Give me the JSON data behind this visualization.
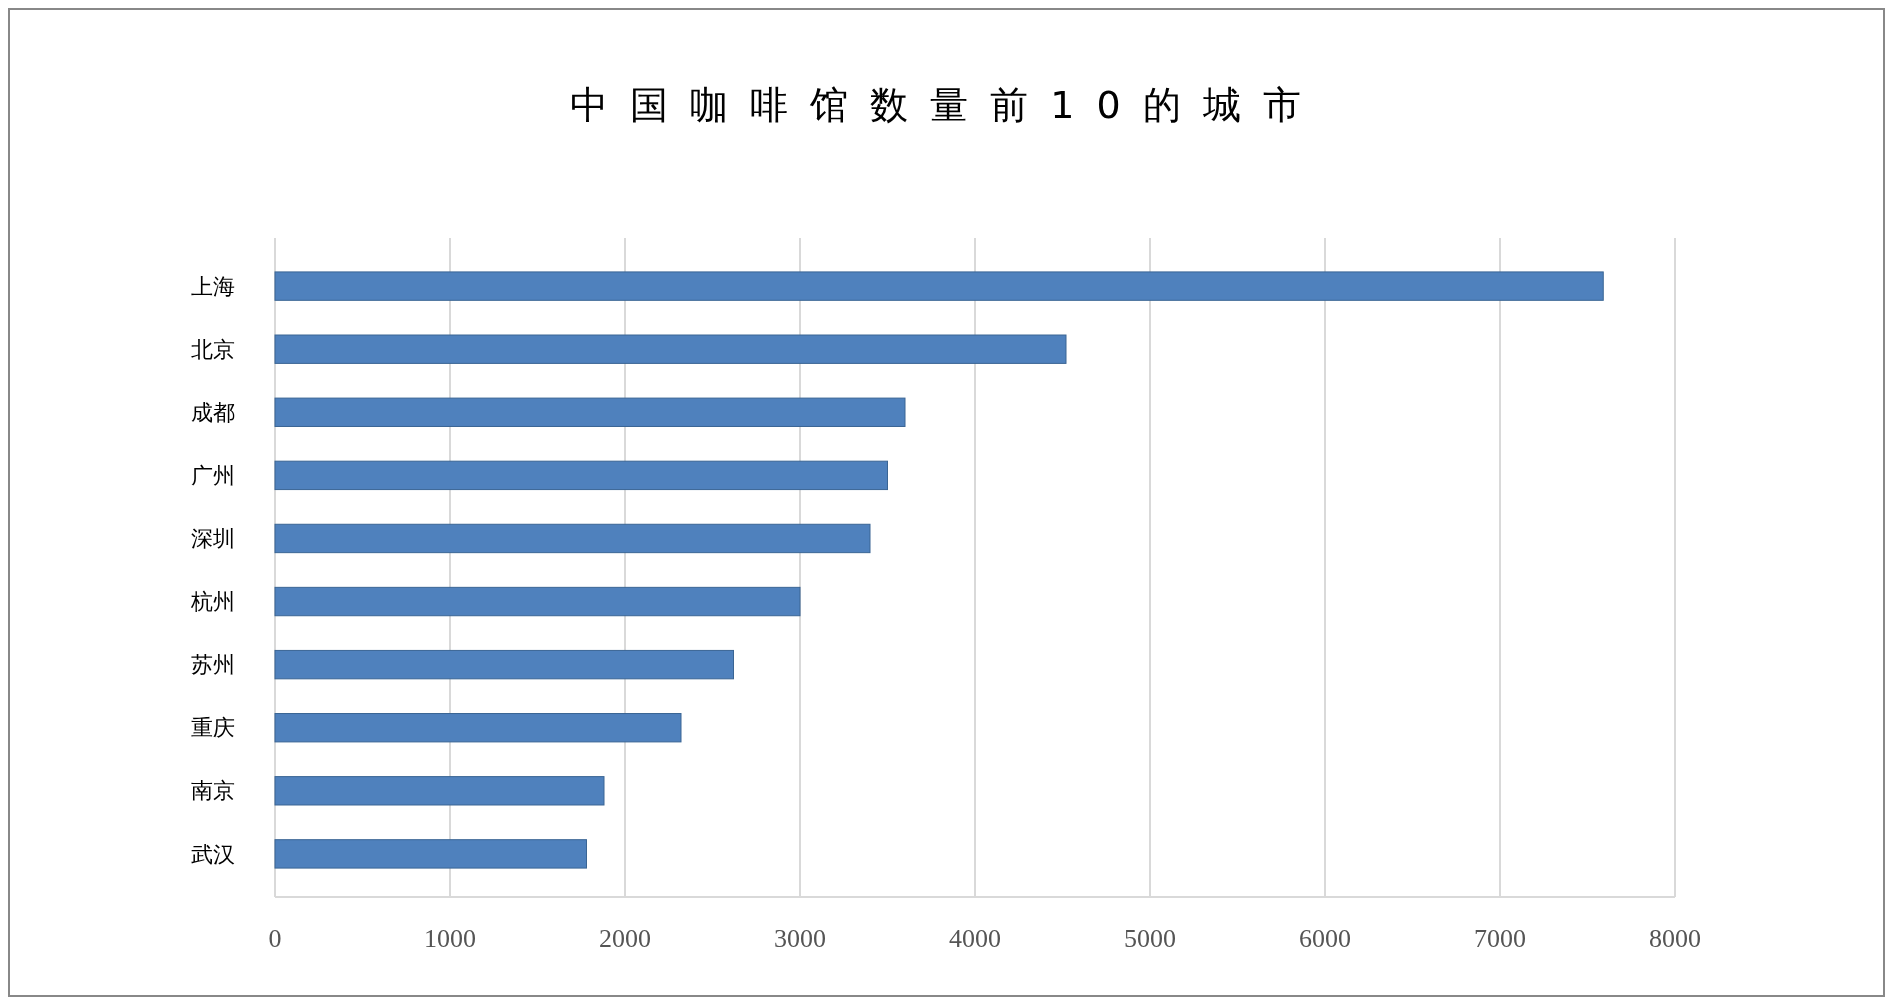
{
  "chart_data": {
    "type": "bar",
    "orientation": "horizontal",
    "title": "中国咖啡馆数量前10的城市",
    "categories": [
      "上海",
      "北京",
      "成都",
      "广州",
      "深圳",
      "杭州",
      "苏州",
      "重庆",
      "南京",
      "武汉"
    ],
    "values": [
      7590,
      4520,
      3600,
      3500,
      3400,
      3000,
      2620,
      2320,
      1880,
      1780
    ],
    "color": "#4f81bd",
    "xlim": [
      0,
      8000
    ],
    "xticks": [
      0,
      1000,
      2000,
      3000,
      4000,
      5000,
      6000,
      7000,
      8000
    ],
    "grid": "x"
  }
}
